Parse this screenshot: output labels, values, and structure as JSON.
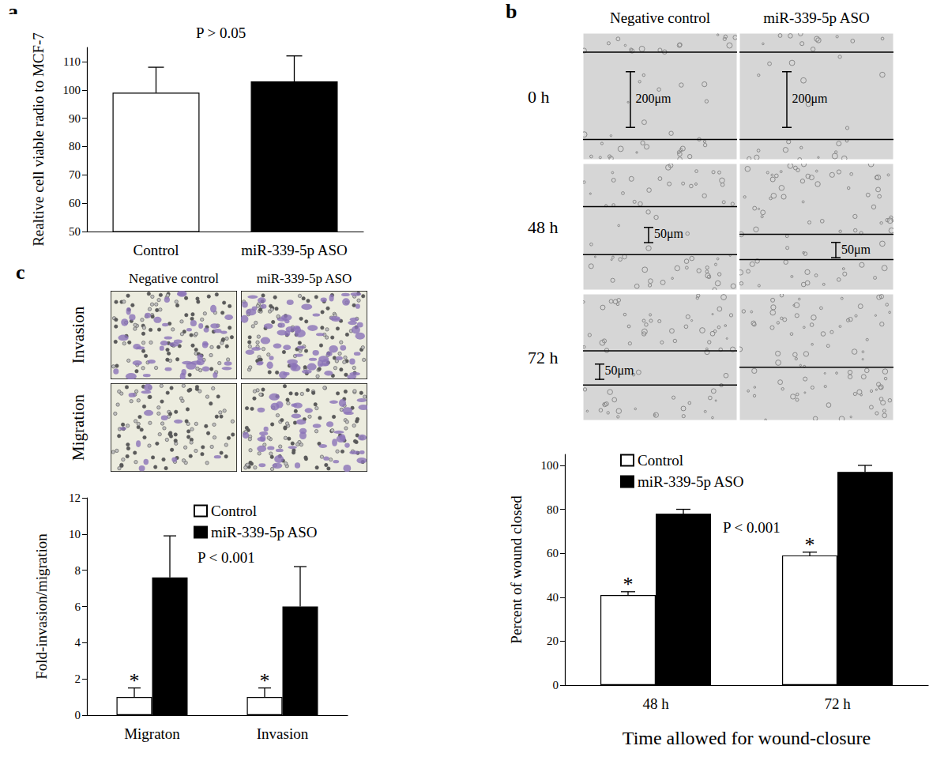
{
  "chart_data": [
    {
      "panel": "a",
      "type": "bar",
      "y_label": "Realtive cell viable radio to MCF-7",
      "categories": [
        "Control",
        "miR-339-5p ASO"
      ],
      "values": [
        99,
        103
      ],
      "errors": [
        9,
        9
      ],
      "colors": [
        "#ffffff",
        "#000000"
      ],
      "ylim": [
        50,
        115
      ],
      "yticks": [
        50,
        60,
        70,
        80,
        90,
        100,
        110
      ],
      "grid": false,
      "annotations": [
        "P > 0.05"
      ]
    },
    {
      "panel": "b",
      "type": "bar",
      "x_label": "Time allowed for wound-closure",
      "y_label": "Percent of wound closed",
      "categories": [
        "48 h",
        "72 h"
      ],
      "series": [
        {
          "name": "Control",
          "color": "#ffffff",
          "values": [
            41,
            59
          ],
          "errors": [
            1.5,
            1.5
          ],
          "significance": [
            "*",
            "*"
          ]
        },
        {
          "name": "miR-339-5p ASO",
          "color": "#000000",
          "values": [
            78,
            97
          ],
          "errors": [
            2,
            3
          ]
        }
      ],
      "ylim": [
        0,
        105
      ],
      "yticks": [
        0,
        20,
        40,
        60,
        80,
        100
      ],
      "grid": false,
      "legend": "upper left",
      "annotations": [
        "P < 0.001"
      ]
    },
    {
      "panel": "c",
      "type": "bar",
      "y_label": "Fold-invasion/migration",
      "categories": [
        "Migraton",
        "Invasion"
      ],
      "series": [
        {
          "name": "Control",
          "color": "#ffffff",
          "values": [
            1,
            1
          ],
          "errors": [
            0.5,
            0.5
          ],
          "significance": [
            "*",
            "*"
          ]
        },
        {
          "name": "miR-339-5p ASO",
          "color": "#000000",
          "values": [
            7.6,
            6
          ],
          "errors": [
            2.3,
            2.2
          ]
        }
      ],
      "ylim": [
        0,
        12
      ],
      "yticks": [
        0,
        2,
        4,
        6,
        8,
        10,
        12
      ],
      "grid": false,
      "legend": "upper center",
      "annotations": [
        "P < 0.001"
      ]
    }
  ],
  "micrographs": {
    "b": {
      "columns": [
        "Negative control",
        "miR-339-5p ASO"
      ],
      "rows": [
        {
          "label": "0 h",
          "scale_bars": [
            "200μm",
            "200μm"
          ]
        },
        {
          "label": "48 h",
          "scale_bars": [
            "50μm",
            "50μm"
          ]
        },
        {
          "label": "72 h",
          "scale_bars": [
            "50μm",
            null
          ]
        }
      ]
    },
    "c": {
      "columns": [
        "Negative control",
        "miR-339-5p ASO"
      ],
      "rows": [
        {
          "label": "Invasion"
        },
        {
          "label": "Migration"
        }
      ]
    }
  }
}
